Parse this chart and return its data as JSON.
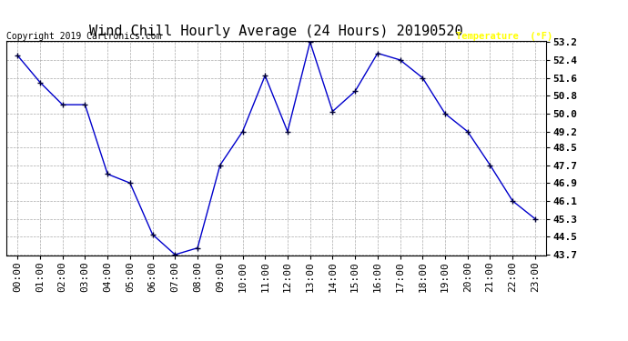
{
  "title": "Wind Chill Hourly Average (24 Hours) 20190520",
  "copyright": "Copyright 2019 Cartronics.com",
  "legend_label": "Temperature  (°F)",
  "hours": [
    "00:00",
    "01:00",
    "02:00",
    "03:00",
    "04:00",
    "05:00",
    "06:00",
    "07:00",
    "08:00",
    "09:00",
    "10:00",
    "11:00",
    "12:00",
    "13:00",
    "14:00",
    "15:00",
    "16:00",
    "17:00",
    "18:00",
    "19:00",
    "20:00",
    "21:00",
    "22:00",
    "23:00"
  ],
  "values": [
    52.6,
    51.4,
    50.4,
    50.4,
    47.3,
    46.9,
    44.6,
    43.7,
    44.0,
    47.7,
    49.2,
    51.7,
    49.2,
    53.2,
    50.1,
    51.0,
    52.7,
    52.4,
    51.6,
    50.0,
    49.2,
    47.7,
    46.1,
    45.3
  ],
  "ylim": [
    43.7,
    53.2
  ],
  "yticks": [
    43.7,
    44.5,
    45.3,
    46.1,
    46.9,
    47.7,
    48.5,
    49.2,
    50.0,
    50.8,
    51.6,
    52.4,
    53.2
  ],
  "line_color": "#0000cc",
  "marker_color": "#000033",
  "bg_color": "#ffffff",
  "plot_bg_color": "#ffffff",
  "grid_color": "#aaaaaa",
  "title_fontsize": 11,
  "copyright_fontsize": 7,
  "tick_fontsize": 8,
  "legend_bg": "#0000cc",
  "legend_text_color": "#ffff00"
}
